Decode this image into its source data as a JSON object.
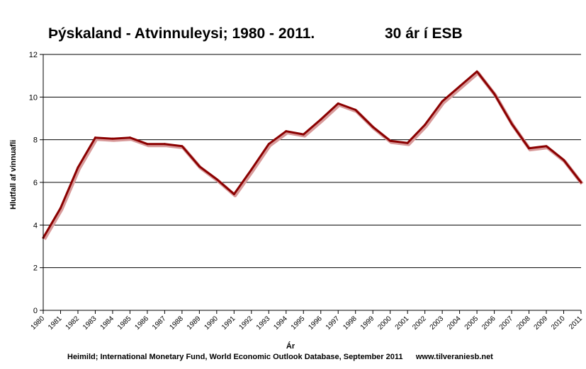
{
  "chart_data": {
    "type": "line",
    "title": "Þýskaland - Atvinnuleysi; 1980 - 2011.",
    "subtitle": "30 ár í ESB",
    "xlabel": "Ár",
    "ylabel": "Hlutfall af vinnuafli",
    "ylim": [
      0,
      12
    ],
    "yticks": [
      "0",
      "2",
      "4",
      "6",
      "8",
      "10",
      "12"
    ],
    "grid": true,
    "legend": "none",
    "x": [
      "1980",
      "1981",
      "1982",
      "1983",
      "1984",
      "1985",
      "1986",
      "1987",
      "1988",
      "1989",
      "1990",
      "1991",
      "1992",
      "1993",
      "1994",
      "1995",
      "1996",
      "1997",
      "1998",
      "1999",
      "2000",
      "2001",
      "2002",
      "2003",
      "2004",
      "2005",
      "2006",
      "2007",
      "2008",
      "2009",
      "2010",
      "2011"
    ],
    "series": [
      {
        "values": [
          3.4,
          4.8,
          6.7,
          8.1,
          8.05,
          8.1,
          7.8,
          7.8,
          7.7,
          6.75,
          6.15,
          5.45,
          6.6,
          7.8,
          8.4,
          8.25,
          8.95,
          9.7,
          9.4,
          8.6,
          7.95,
          7.85,
          8.7,
          9.8,
          10.5,
          11.2,
          10.15,
          8.75,
          7.6,
          7.7,
          7.05,
          6.0
        ],
        "color": "#8b0000"
      }
    ],
    "source": "Heimild; International Monetary Fund, World Economic Outlook Database, September 2011      www.tilveraniesb.net"
  }
}
